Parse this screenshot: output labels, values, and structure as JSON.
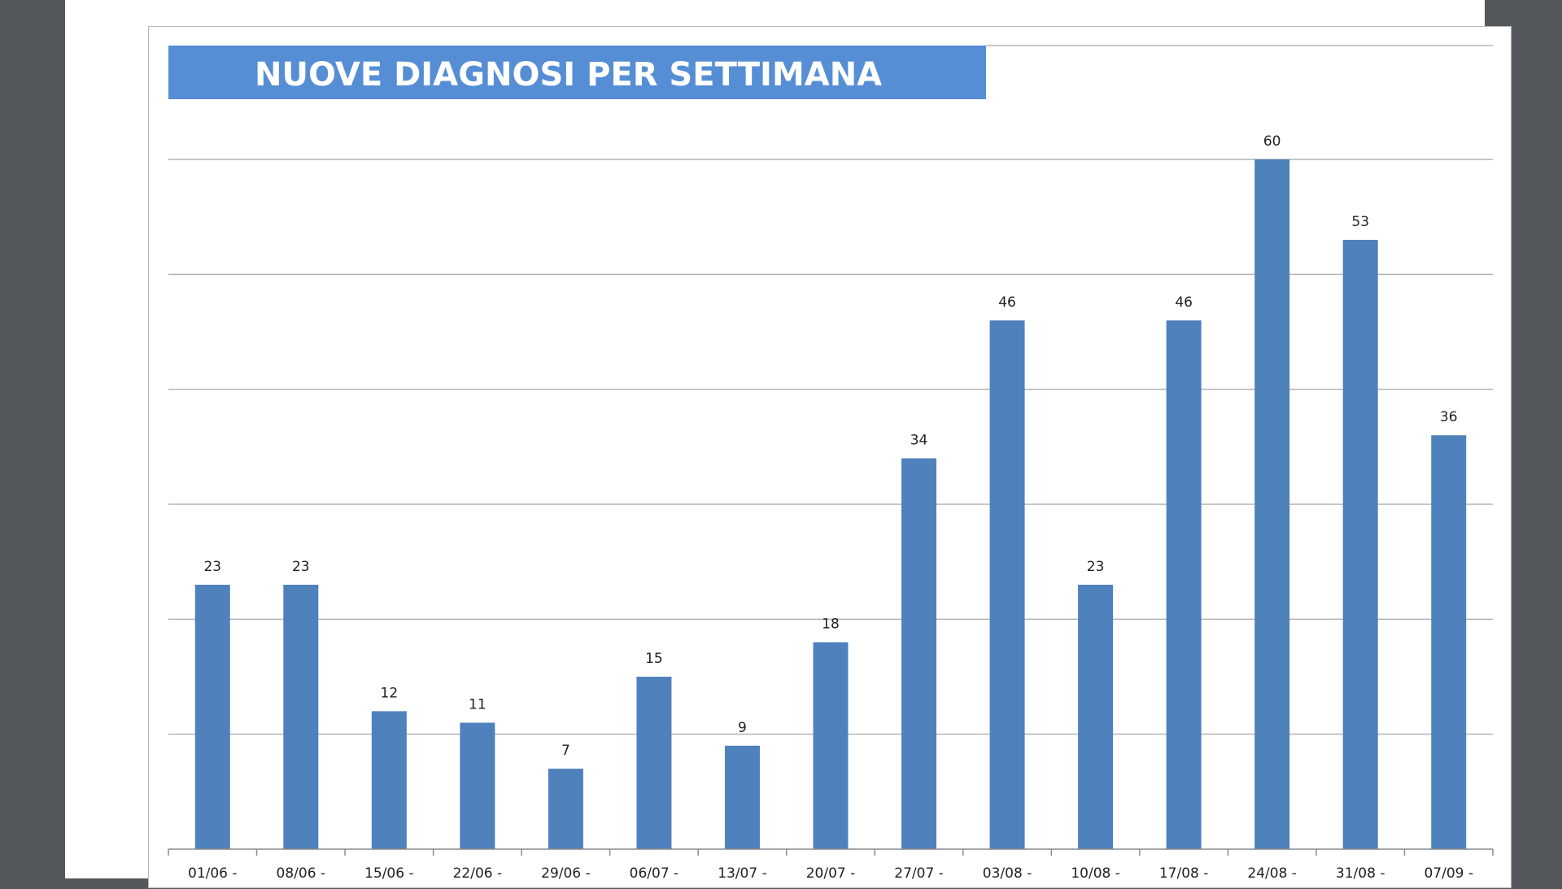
{
  "chart_data": {
    "type": "bar",
    "title": "NUOVE DIAGNOSI PER SETTIMANA",
    "categories": [
      "01/06 -",
      "08/06 -",
      "15/06 -",
      "22/06 -",
      "29/06 -",
      "06/07 -",
      "13/07 -",
      "20/07 -",
      "27/07 -",
      "03/08 -",
      "10/08 -",
      "17/08 -",
      "24/08 -",
      "31/08 -",
      "07/09 -"
    ],
    "values": [
      23,
      23,
      12,
      11,
      7,
      15,
      9,
      18,
      34,
      46,
      23,
      46,
      60,
      53,
      36
    ],
    "data_labels": [
      "23",
      "23",
      "12",
      "11",
      "7",
      "15",
      "9",
      "18",
      "34",
      "46",
      "23",
      "46",
      "60",
      "53",
      "36"
    ],
    "xlabel": "",
    "ylabel": "",
    "ylim": [
      0,
      60
    ],
    "gridline_values": [
      10,
      20,
      30,
      40,
      50,
      60
    ],
    "grid": true,
    "colors": {
      "bar": "#4f81bd",
      "title_banner": "#558ed5",
      "title_text": "#ffffff",
      "grid": "#b3b3b3",
      "axis": "#8c8c8c",
      "label": "#222222"
    }
  }
}
